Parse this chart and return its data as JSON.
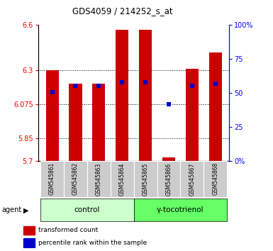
{
  "title": "GDS4059 / 214252_s_at",
  "samples": [
    "GSM545861",
    "GSM545862",
    "GSM545863",
    "GSM545864",
    "GSM545865",
    "GSM545866",
    "GSM545867",
    "GSM545868"
  ],
  "red_values": [
    6.3,
    6.21,
    6.21,
    6.57,
    6.57,
    5.72,
    6.31,
    6.42
  ],
  "blue_values": [
    6.155,
    6.195,
    6.195,
    6.22,
    6.22,
    6.075,
    6.195,
    6.21
  ],
  "ylim_left": [
    5.7,
    6.6
  ],
  "ylim_right": [
    0,
    100
  ],
  "yticks_left": [
    5.7,
    5.85,
    6.075,
    6.3,
    6.6
  ],
  "yticks_right": [
    0,
    25,
    50,
    75,
    100
  ],
  "bar_width": 0.55,
  "bar_color": "#cc0000",
  "blue_color": "#0000cc",
  "control_label": "control",
  "treatment_label": "γ-tocotrienol",
  "agent_label": "agent",
  "legend_red": "transformed count",
  "legend_blue": "percentile rank within the sample",
  "control_bg": "#ccffcc",
  "treatment_bg": "#66ff66",
  "sample_bg": "#cccccc",
  "base_value": 5.7
}
